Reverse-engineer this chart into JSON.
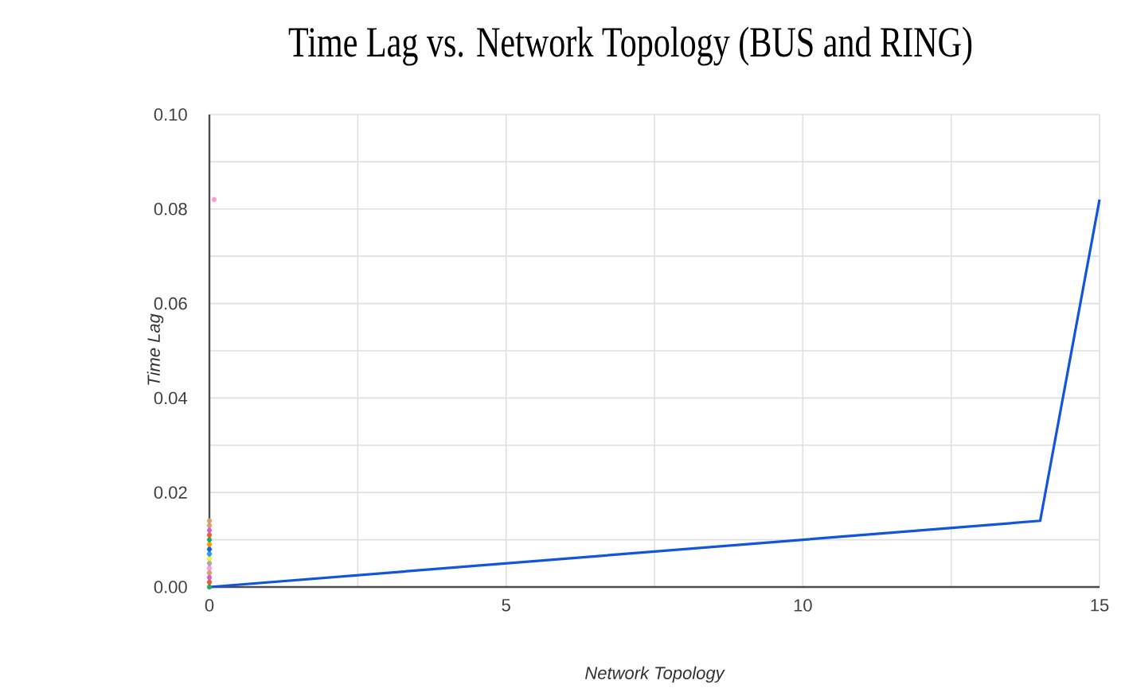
{
  "chart_data": {
    "type": "line",
    "title": "Time Lag vs. Network Topology (BUS and RING)",
    "xlabel": "Network Topology",
    "ylabel": "Time Lag",
    "xlim": [
      0,
      15
    ],
    "ylim": [
      0,
      0.1
    ],
    "xticks": [
      0,
      {
        "value": 2.5,
        "label": null
      },
      5,
      {
        "value": 7.5,
        "label": null
      },
      10,
      {
        "value": 12.5,
        "label": null
      },
      15
    ],
    "yticks": [
      {
        "value": 0,
        "label": "0.00"
      },
      {
        "value": 0.01,
        "label": null
      },
      {
        "value": 0.02,
        "label": "0.02"
      },
      {
        "value": 0.03,
        "label": null
      },
      {
        "value": 0.04,
        "label": "0.04"
      },
      {
        "value": 0.05,
        "label": null
      },
      {
        "value": 0.06,
        "label": "0.06"
      },
      {
        "value": 0.07,
        "label": null
      },
      {
        "value": 0.08,
        "label": "0.08"
      },
      {
        "value": 0.09,
        "label": null
      },
      {
        "value": 0.1,
        "label": "0.10"
      }
    ],
    "grid": true,
    "series": [
      {
        "type": "scatter",
        "marker": "circle",
        "x": [
          0,
          0,
          0,
          0,
          0,
          0,
          0,
          0,
          0,
          0,
          0,
          0,
          0,
          0,
          0,
          0.08
        ],
        "values": [
          0,
          0.001,
          0.002,
          0.003,
          0.004,
          0.005,
          0.006,
          0.007,
          0.008,
          0.009,
          0.01,
          0.011,
          0.012,
          0.013,
          0.014,
          0.082
        ],
        "colors": [
          "#22aa66",
          "#e8602c",
          "#cc66cc",
          "#d4a070",
          "#ff99dd",
          "#aaaaaa",
          "#eeee44",
          "#3399ee",
          "#1166dd",
          "#ff9900",
          "#22aa66",
          "#e8602c",
          "#cc66cc",
          "#d4a070",
          "#d4a070",
          "#ff99dd"
        ]
      },
      {
        "marker": "none",
        "color": "#1155dd",
        "x": [
          0,
          14,
          15
        ],
        "values": [
          0,
          0.014,
          0.082
        ]
      }
    ]
  }
}
